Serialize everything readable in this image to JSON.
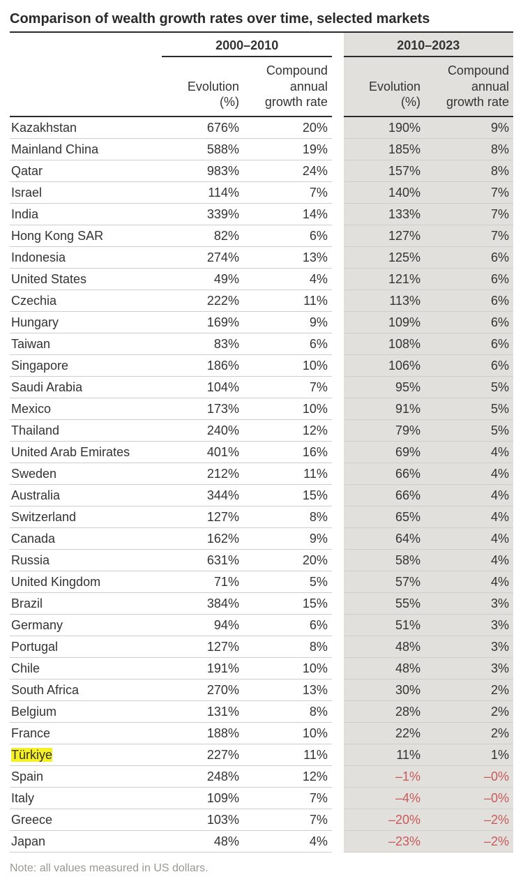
{
  "title": "Comparison of wealth growth rates over time, selected markets",
  "periods": {
    "p1": "2000–2010",
    "p2": "2010–2023"
  },
  "columns": {
    "evolution": "Evolution (%)",
    "cagr": "Compound annual growth rate"
  },
  "highlight_country": "Türkiye",
  "highlight_color": "#f5f126",
  "colors": {
    "text": "#333333",
    "border": "#2a2a2a",
    "row_divider": "#d0cec9",
    "period2_bg": "#e2e0dc",
    "negative": "#c85a5a",
    "note": "#9a9890"
  },
  "font_sizes": {
    "title": 20,
    "body": 18,
    "note": 16
  },
  "rows": [
    {
      "country": "Kazakhstan",
      "e1": "676%",
      "g1": "20%",
      "e2": "190%",
      "g2": "9%"
    },
    {
      "country": "Mainland China",
      "e1": "588%",
      "g1": "19%",
      "e2": "185%",
      "g2": "8%"
    },
    {
      "country": "Qatar",
      "e1": "983%",
      "g1": "24%",
      "e2": "157%",
      "g2": "8%"
    },
    {
      "country": "Israel",
      "e1": "114%",
      "g1": "7%",
      "e2": "140%",
      "g2": "7%"
    },
    {
      "country": "India",
      "e1": "339%",
      "g1": "14%",
      "e2": "133%",
      "g2": "7%"
    },
    {
      "country": "Hong Kong SAR",
      "e1": "82%",
      "g1": "6%",
      "e2": "127%",
      "g2": "7%"
    },
    {
      "country": "Indonesia",
      "e1": "274%",
      "g1": "13%",
      "e2": "125%",
      "g2": "6%"
    },
    {
      "country": "United States",
      "e1": "49%",
      "g1": "4%",
      "e2": "121%",
      "g2": "6%"
    },
    {
      "country": "Czechia",
      "e1": "222%",
      "g1": "11%",
      "e2": "113%",
      "g2": "6%"
    },
    {
      "country": "Hungary",
      "e1": "169%",
      "g1": "9%",
      "e2": "109%",
      "g2": "6%"
    },
    {
      "country": "Taiwan",
      "e1": "83%",
      "g1": "6%",
      "e2": "108%",
      "g2": "6%"
    },
    {
      "country": "Singapore",
      "e1": "186%",
      "g1": "10%",
      "e2": "106%",
      "g2": "6%"
    },
    {
      "country": "Saudi Arabia",
      "e1": "104%",
      "g1": "7%",
      "e2": "95%",
      "g2": "5%"
    },
    {
      "country": "Mexico",
      "e1": "173%",
      "g1": "10%",
      "e2": "91%",
      "g2": "5%"
    },
    {
      "country": "Thailand",
      "e1": "240%",
      "g1": "12%",
      "e2": "79%",
      "g2": "5%"
    },
    {
      "country": "United Arab Emirates",
      "e1": "401%",
      "g1": "16%",
      "e2": "69%",
      "g2": "4%"
    },
    {
      "country": "Sweden",
      "e1": "212%",
      "g1": "11%",
      "e2": "66%",
      "g2": "4%"
    },
    {
      "country": "Australia",
      "e1": "344%",
      "g1": "15%",
      "e2": "66%",
      "g2": "4%"
    },
    {
      "country": "Switzerland",
      "e1": "127%",
      "g1": "8%",
      "e2": "65%",
      "g2": "4%"
    },
    {
      "country": "Canada",
      "e1": "162%",
      "g1": "9%",
      "e2": "64%",
      "g2": "4%"
    },
    {
      "country": "Russia",
      "e1": "631%",
      "g1": "20%",
      "e2": "58%",
      "g2": "4%"
    },
    {
      "country": "United Kingdom",
      "e1": "71%",
      "g1": "5%",
      "e2": "57%",
      "g2": "4%"
    },
    {
      "country": "Brazil",
      "e1": "384%",
      "g1": "15%",
      "e2": "55%",
      "g2": "3%"
    },
    {
      "country": "Germany",
      "e1": "94%",
      "g1": "6%",
      "e2": "51%",
      "g2": "3%"
    },
    {
      "country": "Portugal",
      "e1": "127%",
      "g1": "8%",
      "e2": "48%",
      "g2": "3%"
    },
    {
      "country": "Chile",
      "e1": "191%",
      "g1": "10%",
      "e2": "48%",
      "g2": "3%"
    },
    {
      "country": "South Africa",
      "e1": "270%",
      "g1": "13%",
      "e2": "30%",
      "g2": "2%"
    },
    {
      "country": "Belgium",
      "e1": "131%",
      "g1": "8%",
      "e2": "28%",
      "g2": "2%"
    },
    {
      "country": "France",
      "e1": "188%",
      "g1": "10%",
      "e2": "22%",
      "g2": "2%"
    },
    {
      "country": "Türkiye",
      "e1": "227%",
      "g1": "11%",
      "e2": "11%",
      "g2": "1%"
    },
    {
      "country": "Spain",
      "e1": "248%",
      "g1": "12%",
      "e2": "–1%",
      "g2": "–0%",
      "neg": true
    },
    {
      "country": "Italy",
      "e1": "109%",
      "g1": "7%",
      "e2": "–4%",
      "g2": "–0%",
      "neg": true
    },
    {
      "country": "Greece",
      "e1": "103%",
      "g1": "7%",
      "e2": "–20%",
      "g2": "–2%",
      "neg": true
    },
    {
      "country": "Japan",
      "e1": "48%",
      "g1": "4%",
      "e2": "–23%",
      "g2": "–2%",
      "neg": true
    }
  ],
  "note": "Note: all values measured in US dollars."
}
